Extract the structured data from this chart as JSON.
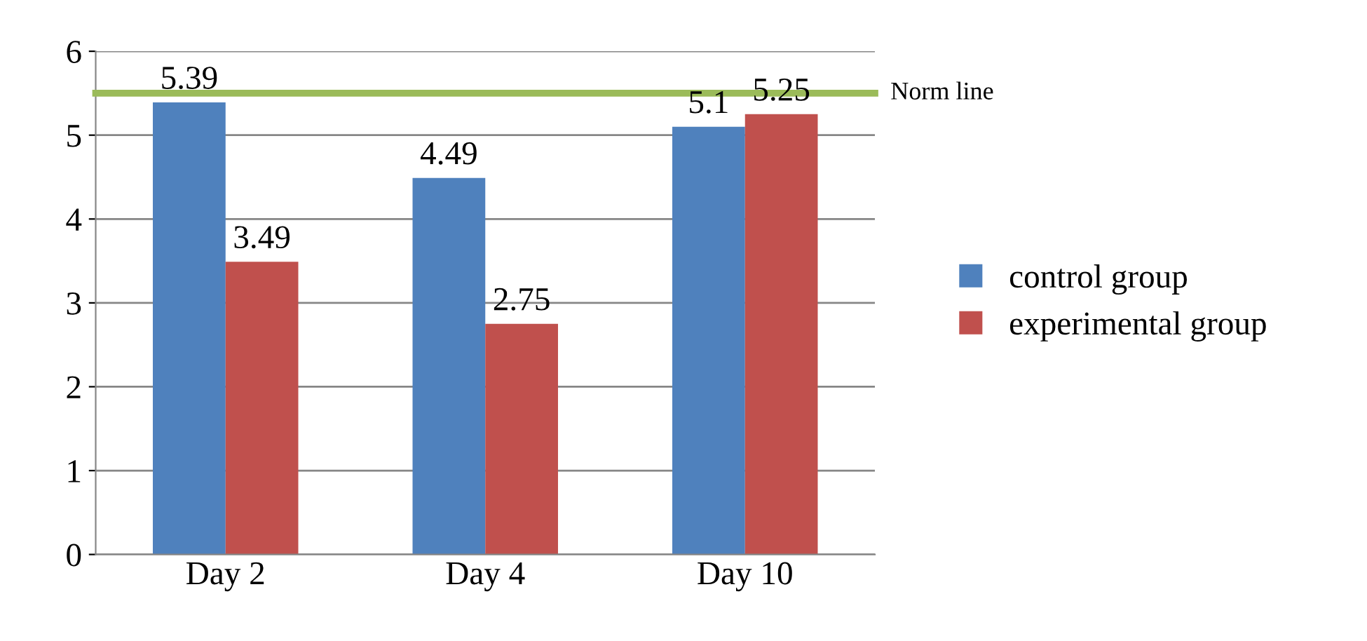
{
  "chart_data": {
    "type": "bar",
    "categories": [
      "Day 2",
      "Day 4",
      "Day 10"
    ],
    "series": [
      {
        "name": "control group",
        "color": "#4f81bd",
        "values": [
          5.39,
          4.49,
          5.1
        ]
      },
      {
        "name": "experimental group",
        "color": "#c0504d",
        "values": [
          3.49,
          2.75,
          5.25
        ]
      }
    ],
    "ylim": [
      0,
      6
    ],
    "yticks": [
      0,
      1,
      2,
      3,
      4,
      5,
      6
    ],
    "grid": "y",
    "legend": "right",
    "data_labels": true,
    "ref_lines": [
      {
        "axis": "y",
        "value": 5.5,
        "label": "Norm line",
        "color": "#9bbb59"
      }
    ]
  }
}
